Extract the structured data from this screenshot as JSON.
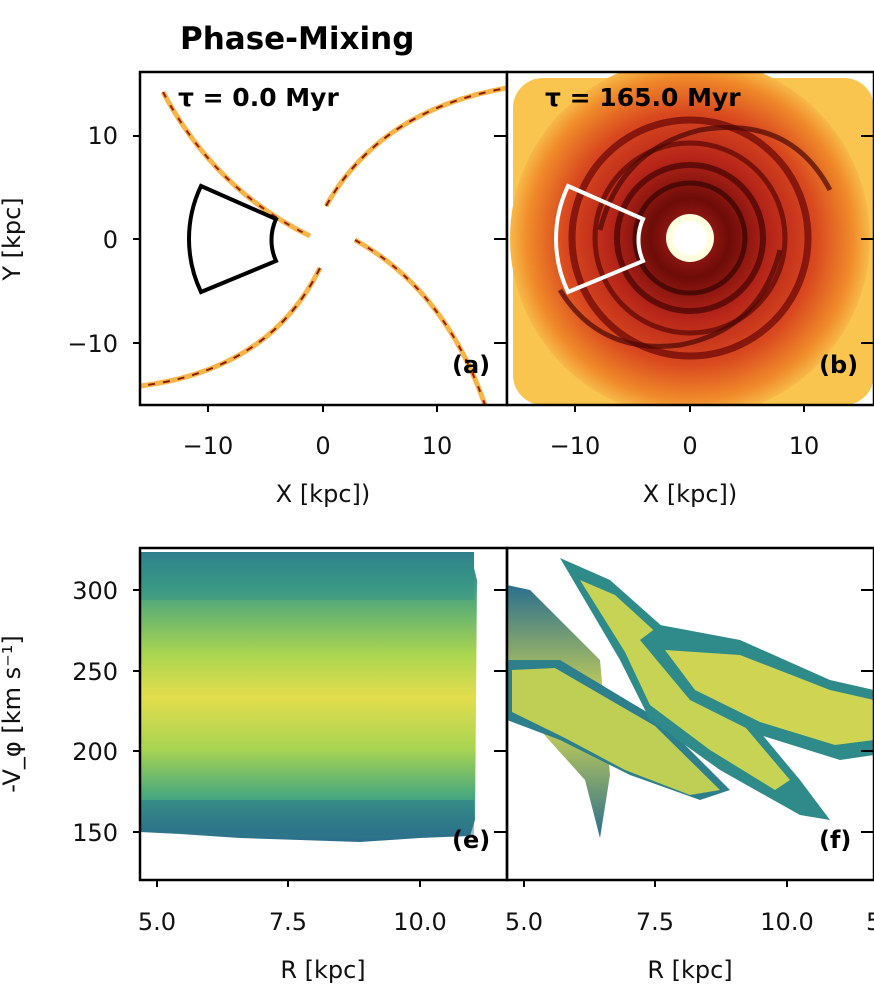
{
  "chart_data": {
    "title": "Phase-Mixing",
    "colors": {
      "hot_low": "#ffffc0",
      "hot_mid": "#f2a12b",
      "hot_high": "#c0291a",
      "hot_peak": "#3a0806",
      "viridis_low": "#2a6f8e",
      "viridis_mid": "#56b36b",
      "viridis_high": "#e4de4e",
      "region_outline_a": "#000000",
      "region_outline_b": "#ffffff"
    },
    "panels": [
      {
        "id": "a",
        "type": "heatmap",
        "label": "(a)",
        "annotation": "τ = 0.0 Myr",
        "xlabel": "X [kpc])",
        "ylabel": "Y [kpc]",
        "xlim": [
          -16,
          16
        ],
        "ylim": [
          -16,
          16
        ],
        "xticks": [
          "−10",
          "0",
          "10"
        ],
        "yticks": [
          "10",
          "0",
          "−10"
        ],
        "spiral_arms": 4,
        "selection_wedge": {
          "r_min": 4.5,
          "r_max": 11,
          "phi_min_deg": 155,
          "phi_max_deg": 205
        }
      },
      {
        "id": "b",
        "type": "heatmap",
        "label": "(b)",
        "annotation": "τ = 165.0 Myr",
        "xlabel": "X [kpc])",
        "xlim": [
          -16,
          16
        ],
        "ylim": [
          -16,
          16
        ],
        "xticks": [
          "−10",
          "0",
          "10"
        ],
        "selection_wedge": {
          "r_min": 4.5,
          "r_max": 11,
          "phi_min_deg": 155,
          "phi_max_deg": 205
        }
      },
      {
        "id": "e",
        "type": "heatmap",
        "label": "(e)",
        "xlabel": "R [kpc]",
        "ylabel": "-V_φ [km s⁻¹]",
        "xlim": [
          4.7,
          11.0
        ],
        "ylim": [
          120,
          325
        ],
        "xticks": [
          "5.0",
          "7.5",
          "10.0"
        ],
        "yticks": [
          "300",
          "250",
          "200",
          "150"
        ],
        "distribution": {
          "r_range": [
            4.7,
            10.2
          ],
          "v_range": [
            148,
            320
          ],
          "v_peak": 236
        }
      },
      {
        "id": "f",
        "type": "heatmap",
        "label": "(f)",
        "xlabel": "R [kpc]",
        "xlim": [
          4.7,
          11.0
        ],
        "ylim": [
          120,
          325
        ],
        "xticks": [
          "5.0",
          "7.5",
          "10.0",
          "5"
        ],
        "streaks": [
          {
            "r": [
              4.7,
              6.6
            ],
            "v": [
              300,
              150
            ]
          },
          {
            "r": [
              5.8,
              9.5
            ],
            "v": [
              318,
              185
            ]
          },
          {
            "r": [
              7.2,
              11.0
            ],
            "v": [
              275,
              215
            ]
          },
          {
            "r": [
              5.0,
              10.5
            ],
            "v": [
              262,
              180
            ]
          }
        ]
      }
    ]
  }
}
